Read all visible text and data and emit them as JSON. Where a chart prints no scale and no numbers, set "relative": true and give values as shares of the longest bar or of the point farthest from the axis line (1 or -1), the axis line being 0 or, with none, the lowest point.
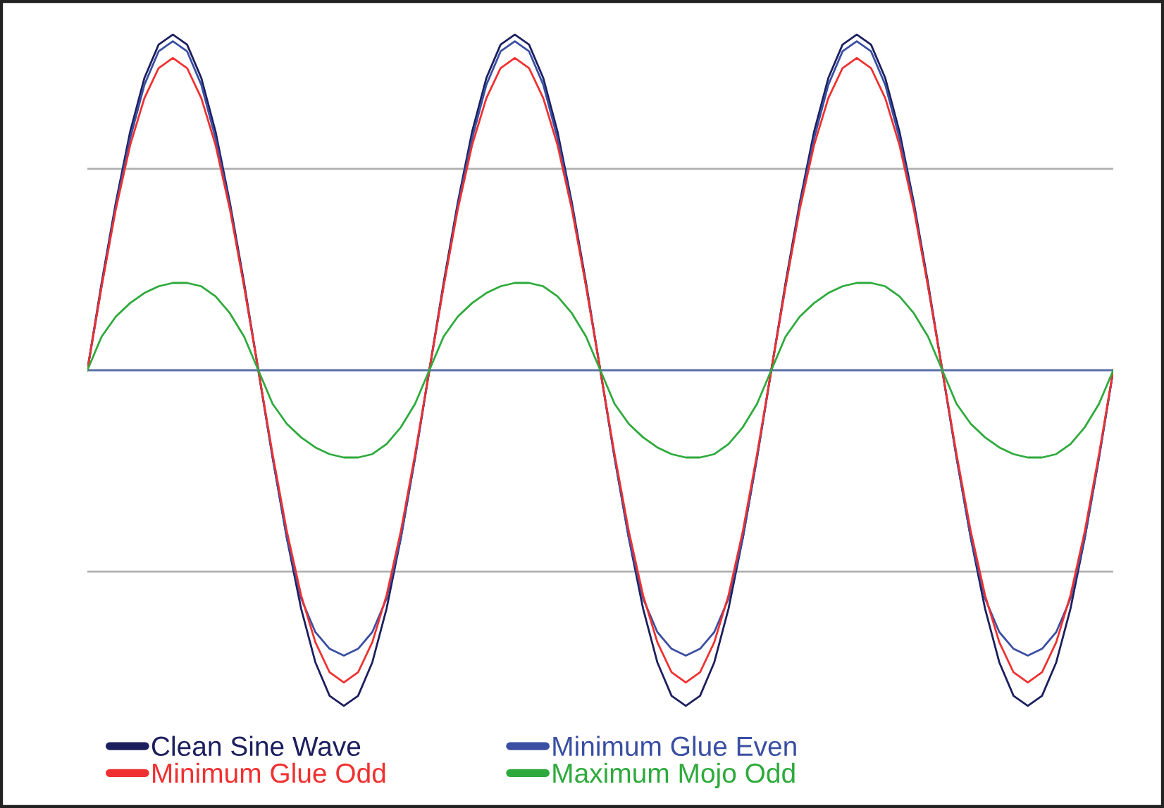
{
  "chart_data": {
    "type": "line",
    "relative": true,
    "legend": "bottom",
    "marker": "none",
    "line_style": "solid",
    "categories": [
      null,
      null,
      null,
      null,
      null,
      null,
      null,
      null,
      null,
      null,
      null,
      null,
      null,
      null,
      null,
      null,
      null,
      null,
      null,
      null,
      null,
      null,
      null,
      null,
      null,
      null,
      null,
      null,
      null,
      null,
      null,
      null,
      null,
      null,
      null,
      null,
      null,
      null,
      null,
      null,
      null,
      null,
      null,
      null,
      null,
      null,
      null,
      null,
      null,
      null,
      null,
      null,
      null,
      null,
      null,
      null,
      null,
      null,
      null,
      null,
      null,
      null,
      null,
      null,
      null,
      null,
      null,
      null,
      null,
      null,
      null,
      null,
      null
    ],
    "ref_lines": [
      {
        "axis": "y",
        "value": 0,
        "color": "#5b6fa8"
      },
      {
        "axis": "y",
        "value": 0.6,
        "color": "#b0b0b0"
      },
      {
        "axis": "y",
        "value": -0.6,
        "color": "#b0b0b0"
      }
    ],
    "series": [
      {
        "name": "Clean Sine Wave",
        "color": "#1c1f5e",
        "values": [
          0,
          0.26,
          0.5,
          0.71,
          0.87,
          0.97,
          1,
          0.97,
          0.87,
          0.71,
          0.5,
          0.26,
          0,
          -0.26,
          -0.5,
          -0.71,
          -0.87,
          -0.97,
          -1,
          -0.97,
          -0.87,
          -0.71,
          -0.5,
          -0.26,
          0,
          0.26,
          0.5,
          0.71,
          0.87,
          0.97,
          1,
          0.97,
          0.87,
          0.71,
          0.5,
          0.26,
          0,
          -0.26,
          -0.5,
          -0.71,
          -0.87,
          -0.97,
          -1,
          -0.97,
          -0.87,
          -0.71,
          -0.5,
          -0.26,
          0,
          0.26,
          0.5,
          0.71,
          0.87,
          0.97,
          1,
          0.97,
          0.87,
          0.71,
          0.5,
          0.26,
          0,
          -0.26,
          -0.5,
          -0.71,
          -0.87,
          -0.97,
          -1,
          -0.97,
          -0.87,
          -0.71,
          -0.5,
          -0.26,
          0
        ]
      },
      {
        "name": "Minimum Glue Even",
        "color": "#3a4fa3",
        "values": [
          0,
          0.25,
          0.49,
          0.69,
          0.85,
          0.95,
          0.98,
          0.95,
          0.85,
          0.69,
          0.49,
          0.25,
          0,
          -0.26,
          -0.5,
          -0.68,
          -0.78,
          -0.83,
          -0.85,
          -0.83,
          -0.78,
          -0.68,
          -0.5,
          -0.26,
          0,
          0.25,
          0.49,
          0.69,
          0.85,
          0.95,
          0.98,
          0.95,
          0.85,
          0.69,
          0.49,
          0.25,
          0,
          -0.26,
          -0.5,
          -0.68,
          -0.78,
          -0.83,
          -0.85,
          -0.83,
          -0.78,
          -0.68,
          -0.5,
          -0.26,
          0,
          0.25,
          0.49,
          0.69,
          0.85,
          0.95,
          0.98,
          0.95,
          0.85,
          0.69,
          0.49,
          0.25,
          0,
          -0.26,
          -0.5,
          -0.68,
          -0.78,
          -0.83,
          -0.85,
          -0.83,
          -0.78,
          -0.68,
          -0.5,
          -0.26,
          0
        ]
      },
      {
        "name": "Minimum Glue Odd",
        "color": "#f03030",
        "values": [
          0,
          0.25,
          0.48,
          0.67,
          0.81,
          0.9,
          0.93,
          0.9,
          0.81,
          0.67,
          0.48,
          0.25,
          0,
          -0.25,
          -0.48,
          -0.67,
          -0.81,
          -0.9,
          -0.93,
          -0.9,
          -0.81,
          -0.67,
          -0.48,
          -0.25,
          0,
          0.25,
          0.48,
          0.67,
          0.81,
          0.9,
          0.93,
          0.9,
          0.81,
          0.67,
          0.48,
          0.25,
          0,
          -0.25,
          -0.48,
          -0.67,
          -0.81,
          -0.9,
          -0.93,
          -0.9,
          -0.81,
          -0.67,
          -0.48,
          -0.25,
          0,
          0.25,
          0.48,
          0.67,
          0.81,
          0.9,
          0.93,
          0.9,
          0.81,
          0.67,
          0.48,
          0.25,
          0,
          -0.25,
          -0.48,
          -0.67,
          -0.81,
          -0.9,
          -0.93,
          -0.9,
          -0.81,
          -0.67,
          -0.48,
          -0.25,
          0
        ]
      },
      {
        "name": "Maximum Mojo Odd",
        "color": "#2eaa3c",
        "values": [
          0,
          0.1,
          0.16,
          0.2,
          0.23,
          0.25,
          0.26,
          0.26,
          0.25,
          0.22,
          0.17,
          0.1,
          0,
          -0.1,
          -0.16,
          -0.2,
          -0.23,
          -0.25,
          -0.26,
          -0.26,
          -0.25,
          -0.22,
          -0.17,
          -0.1,
          0,
          0.1,
          0.16,
          0.2,
          0.23,
          0.25,
          0.26,
          0.26,
          0.25,
          0.22,
          0.17,
          0.1,
          0,
          -0.1,
          -0.16,
          -0.2,
          -0.23,
          -0.25,
          -0.26,
          -0.26,
          -0.25,
          -0.22,
          -0.17,
          -0.1,
          0,
          0.1,
          0.16,
          0.2,
          0.23,
          0.25,
          0.26,
          0.26,
          0.25,
          0.22,
          0.17,
          0.1,
          0,
          -0.1,
          -0.16,
          -0.2,
          -0.23,
          -0.25,
          -0.26,
          -0.26,
          -0.25,
          -0.22,
          -0.17,
          -0.1,
          0
        ]
      }
    ]
  }
}
